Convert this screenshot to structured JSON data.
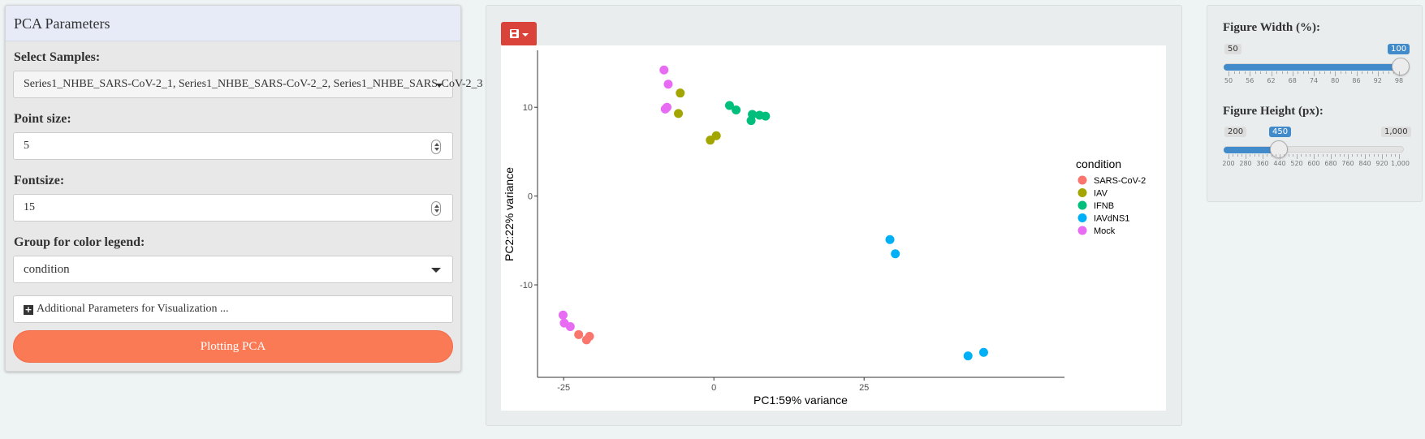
{
  "left_panel": {
    "title": "PCA Parameters",
    "select_samples_label": "Select Samples:",
    "select_samples_value": "Series1_NHBE_SARS-CoV-2_1, Series1_NHBE_SARS-CoV-2_2, Series1_NHBE_SARS-CoV-2_3",
    "point_size_label": "Point size:",
    "point_size_value": "5",
    "fontsize_label": "Fontsize:",
    "fontsize_value": "15",
    "group_label": "Group for color legend:",
    "group_value": "condition",
    "additional_label": "Additional Parameters for Visualization ...",
    "plot_button_label": "Plotting PCA",
    "plot_button_color": "#fb7a56"
  },
  "toolbar": {
    "save_icon": "floppy-disk-icon",
    "save_button_color": "#d9433a"
  },
  "chart_data": {
    "type": "scatter",
    "xlabel": "PC1:59% variance",
    "ylabel": "PC2:22% variance",
    "xlim": [
      -28,
      57
    ],
    "ylim": [
      -19.5,
      15.5
    ],
    "x_ticks": [
      -25,
      0,
      25
    ],
    "y_ticks": [
      10,
      0,
      -10
    ],
    "grid": false,
    "legend_title": "condition",
    "legend_placement": "right",
    "series": [
      {
        "name": "SARS-CoV-2",
        "color": "#f8766d",
        "points": [
          [
            -22.5,
            -15.6
          ],
          [
            -21.2,
            -16.2
          ],
          [
            -20.7,
            -15.8
          ]
        ]
      },
      {
        "name": "IAV",
        "color": "#a3a500",
        "points": [
          [
            -5.6,
            11.6
          ],
          [
            -5.9,
            9.3
          ],
          [
            -0.6,
            6.3
          ],
          [
            0.4,
            6.8
          ]
        ]
      },
      {
        "name": "IFNB",
        "color": "#00bf7d",
        "points": [
          [
            2.6,
            10.2
          ],
          [
            3.7,
            9.7
          ],
          [
            6.2,
            8.5
          ],
          [
            6.4,
            9.2
          ],
          [
            7.6,
            9.1
          ],
          [
            8.6,
            9.0
          ]
        ]
      },
      {
        "name": "IAVdNS1",
        "color": "#00b0f6",
        "points": [
          [
            29.3,
            -4.9
          ],
          [
            30.2,
            -6.5
          ],
          [
            42.3,
            -18.0
          ],
          [
            44.9,
            -17.6
          ]
        ]
      },
      {
        "name": "Mock",
        "color": "#e76bf3",
        "points": [
          [
            -8.3,
            14.2
          ],
          [
            -7.6,
            12.6
          ],
          [
            -8.1,
            9.8
          ],
          [
            -7.8,
            10.0
          ],
          [
            -25.1,
            -13.4
          ],
          [
            -24.9,
            -14.3
          ],
          [
            -23.9,
            -14.7
          ]
        ]
      }
    ]
  },
  "right_panel": {
    "width_label": "Figure Width (%):",
    "width_min_tag": "50",
    "width_value_tag": "100",
    "width_value": 100,
    "width_min": 50,
    "width_max": 100,
    "width_ticks": [
      "50",
      "56",
      "62",
      "68",
      "74",
      "80",
      "86",
      "92",
      "98"
    ],
    "height_label": "Figure Height (px):",
    "height_min_tag": "200",
    "height_value_tag": "450",
    "height_max_tag": "1,000",
    "height_value": 450,
    "height_min": 200,
    "height_max": 1000,
    "height_ticks": [
      "200",
      "280",
      "360",
      "440",
      "520",
      "600",
      "680",
      "760",
      "840",
      "920",
      "1,000"
    ],
    "slider_color": "#428bca"
  }
}
